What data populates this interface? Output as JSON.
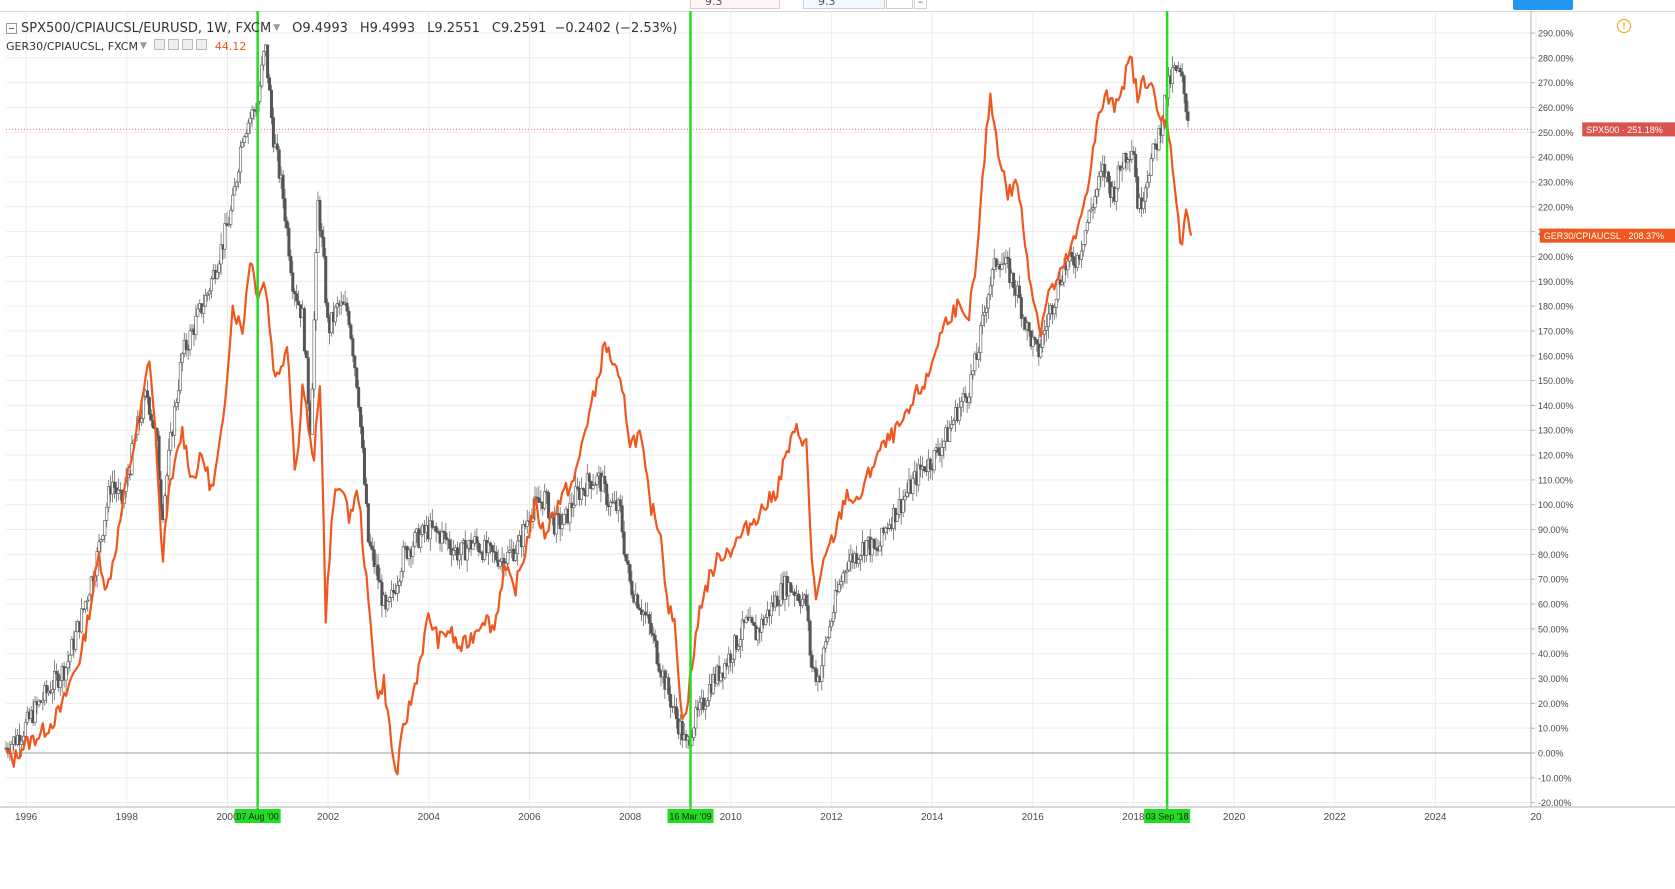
{
  "topbar": {
    "field_a": "9.3",
    "field_b": "9.3",
    "minimize": "–"
  },
  "legend": {
    "main_symbol": "SPX500/CPIAUCSL/EURUSD, 1W, FXCM",
    "open": "O9.4993",
    "high": "H9.4993",
    "low": "L9.2551",
    "close": "C9.2591",
    "change": "−0.2402 (−2.53%)",
    "compare_symbol": "GER30/CPIAUCSL, FXCM",
    "compare_value": "44.12"
  },
  "chart_data": {
    "type": "line",
    "y_axis": {
      "ticks": [
        "290.00%",
        "280.00%",
        "270.00%",
        "260.00%",
        "250.00%",
        "240.00%",
        "230.00%",
        "220.00%",
        "210.00%",
        "200.00%",
        "190.00%",
        "180.00%",
        "170.00%",
        "160.00%",
        "150.00%",
        "140.00%",
        "130.00%",
        "120.00%",
        "110.00%",
        "100.00%",
        "90.00%",
        "80.00%",
        "70.00%",
        "60.00%",
        "50.00%",
        "40.00%",
        "30.00%",
        "20.00%",
        "10.00%",
        "0.00%",
        "-10.00%",
        "-20.00%"
      ],
      "range": [
        -20,
        292
      ],
      "unit": "%"
    },
    "x_axis": {
      "ticks": [
        "1996",
        "1998",
        "2000",
        "2002",
        "2004",
        "2006",
        "2008",
        "2010",
        "2012",
        "2014",
        "2016",
        "2018",
        "2020",
        "2022",
        "2024",
        "20"
      ],
      "range": [
        1995.6,
        2025.9
      ]
    },
    "series": [
      {
        "name": "SPX500",
        "style": "candles",
        "color": "#555555",
        "last_label": "SPX500",
        "last_value_text": "251.18%",
        "last_value": 251.18,
        "points": [
          [
            1995.6,
            2
          ],
          [
            1995.9,
            8
          ],
          [
            1996.2,
            18
          ],
          [
            1996.5,
            27
          ],
          [
            1996.8,
            35
          ],
          [
            1997.1,
            55
          ],
          [
            1997.4,
            78
          ],
          [
            1997.7,
            110
          ],
          [
            1997.9,
            100
          ],
          [
            1998.2,
            130
          ],
          [
            1998.4,
            145
          ],
          [
            1998.6,
            125
          ],
          [
            1998.7,
            95
          ],
          [
            1998.9,
            130
          ],
          [
            1999.1,
            160
          ],
          [
            1999.3,
            170
          ],
          [
            1999.6,
            185
          ],
          [
            1999.9,
            205
          ],
          [
            2000.1,
            220
          ],
          [
            2000.3,
            250
          ],
          [
            2000.6,
            262
          ],
          [
            2000.75,
            285
          ],
          [
            2000.9,
            250
          ],
          [
            2001.1,
            225
          ],
          [
            2001.3,
            190
          ],
          [
            2001.5,
            175
          ],
          [
            2001.65,
            130
          ],
          [
            2001.8,
            222
          ],
          [
            2001.9,
            200
          ],
          [
            2002.0,
            170
          ],
          [
            2002.2,
            180
          ],
          [
            2002.4,
            178
          ],
          [
            2002.6,
            145
          ],
          [
            2002.8,
            85
          ],
          [
            2003.0,
            70
          ],
          [
            2003.15,
            55
          ],
          [
            2003.3,
            65
          ],
          [
            2003.5,
            80
          ],
          [
            2003.7,
            85
          ],
          [
            2004.0,
            90
          ],
          [
            2004.3,
            87
          ],
          [
            2004.6,
            80
          ],
          [
            2004.9,
            85
          ],
          [
            2005.2,
            80
          ],
          [
            2005.5,
            78
          ],
          [
            2005.8,
            84
          ],
          [
            2006.0,
            97
          ],
          [
            2006.3,
            103
          ],
          [
            2006.5,
            92
          ],
          [
            2006.7,
            93
          ],
          [
            2006.9,
            103
          ],
          [
            2007.2,
            110
          ],
          [
            2007.4,
            110
          ],
          [
            2007.6,
            100
          ],
          [
            2007.8,
            98
          ],
          [
            2007.9,
            80
          ],
          [
            2008.0,
            68
          ],
          [
            2008.2,
            60
          ],
          [
            2008.4,
            50
          ],
          [
            2008.6,
            35
          ],
          [
            2008.75,
            25
          ],
          [
            2008.9,
            15
          ],
          [
            2009.0,
            10
          ],
          [
            2009.12,
            2
          ],
          [
            2009.25,
            12
          ],
          [
            2009.4,
            17
          ],
          [
            2009.6,
            28
          ],
          [
            2009.8,
            33
          ],
          [
            2010.0,
            40
          ],
          [
            2010.3,
            52
          ],
          [
            2010.5,
            48
          ],
          [
            2010.7,
            55
          ],
          [
            2010.9,
            62
          ],
          [
            2011.1,
            68
          ],
          [
            2011.3,
            65
          ],
          [
            2011.5,
            60
          ],
          [
            2011.6,
            35
          ],
          [
            2011.75,
            30
          ],
          [
            2011.9,
            45
          ],
          [
            2012.1,
            63
          ],
          [
            2012.3,
            77
          ],
          [
            2012.5,
            80
          ],
          [
            2012.7,
            85
          ],
          [
            2012.9,
            80
          ],
          [
            2013.1,
            92
          ],
          [
            2013.3,
            98
          ],
          [
            2013.6,
            108
          ],
          [
            2013.8,
            115
          ],
          [
            2014.0,
            118
          ],
          [
            2014.3,
            128
          ],
          [
            2014.5,
            138
          ],
          [
            2014.7,
            145
          ],
          [
            2014.9,
            160
          ],
          [
            2015.1,
            185
          ],
          [
            2015.3,
            200
          ],
          [
            2015.5,
            195
          ],
          [
            2015.7,
            185
          ],
          [
            2015.9,
            170
          ],
          [
            2016.1,
            160
          ],
          [
            2016.3,
            175
          ],
          [
            2016.6,
            195
          ],
          [
            2016.9,
            200
          ],
          [
            2017.1,
            215
          ],
          [
            2017.4,
            235
          ],
          [
            2017.6,
            225
          ],
          [
            2017.8,
            240
          ],
          [
            2018.0,
            245
          ],
          [
            2018.1,
            218
          ],
          [
            2018.3,
            235
          ],
          [
            2018.5,
            248
          ],
          [
            2018.65,
            265
          ],
          [
            2018.8,
            275
          ],
          [
            2018.95,
            272
          ],
          [
            2019.1,
            255
          ]
        ]
      },
      {
        "name": "GER30/CPIAUCSL",
        "style": "line",
        "color": "#f0571f",
        "last_label": "GER30/CPIAUCSL",
        "last_value_text": "208.37%",
        "last_value": 208.37,
        "points": [
          [
            1995.6,
            0
          ],
          [
            1995.75,
            -3
          ],
          [
            1995.9,
            2
          ],
          [
            1996.1,
            5
          ],
          [
            1996.3,
            8
          ],
          [
            1996.5,
            12
          ],
          [
            1996.7,
            18
          ],
          [
            1996.9,
            30
          ],
          [
            1997.1,
            40
          ],
          [
            1997.3,
            62
          ],
          [
            1997.45,
            80
          ],
          [
            1997.6,
            65
          ],
          [
            1997.8,
            85
          ],
          [
            1998.0,
            110
          ],
          [
            1998.15,
            125
          ],
          [
            1998.3,
            140
          ],
          [
            1998.45,
            160
          ],
          [
            1998.6,
            120
          ],
          [
            1998.7,
            75
          ],
          [
            1998.8,
            100
          ],
          [
            1998.95,
            115
          ],
          [
            1999.1,
            130
          ],
          [
            1999.3,
            110
          ],
          [
            1999.5,
            120
          ],
          [
            1999.7,
            105
          ],
          [
            1999.9,
            130
          ],
          [
            2000.1,
            180
          ],
          [
            2000.3,
            170
          ],
          [
            2000.45,
            200
          ],
          [
            2000.6,
            185
          ],
          [
            2000.75,
            190
          ],
          [
            2000.95,
            150
          ],
          [
            2001.2,
            165
          ],
          [
            2001.35,
            110
          ],
          [
            2001.5,
            150
          ],
          [
            2001.7,
            115
          ],
          [
            2001.85,
            150
          ],
          [
            2001.95,
            55
          ],
          [
            2002.1,
            100
          ],
          [
            2002.25,
            110
          ],
          [
            2002.4,
            95
          ],
          [
            2002.6,
            105
          ],
          [
            2002.8,
            60
          ],
          [
            2003.0,
            20
          ],
          [
            2003.1,
            30
          ],
          [
            2003.25,
            5
          ],
          [
            2003.35,
            -10
          ],
          [
            2003.5,
            10
          ],
          [
            2003.7,
            25
          ],
          [
            2004.0,
            55
          ],
          [
            2004.2,
            45
          ],
          [
            2004.4,
            50
          ],
          [
            2004.6,
            42
          ],
          [
            2004.8,
            45
          ],
          [
            2005.1,
            55
          ],
          [
            2005.3,
            50
          ],
          [
            2005.5,
            75
          ],
          [
            2005.7,
            65
          ],
          [
            2005.9,
            80
          ],
          [
            2006.1,
            100
          ],
          [
            2006.3,
            88
          ],
          [
            2006.5,
            98
          ],
          [
            2006.7,
            105
          ],
          [
            2006.9,
            110
          ],
          [
            2007.1,
            130
          ],
          [
            2007.3,
            145
          ],
          [
            2007.5,
            165
          ],
          [
            2007.7,
            155
          ],
          [
            2007.9,
            140
          ],
          [
            2008.0,
            125
          ],
          [
            2008.2,
            128
          ],
          [
            2008.4,
            100
          ],
          [
            2008.6,
            90
          ],
          [
            2008.75,
            60
          ],
          [
            2008.9,
            50
          ],
          [
            2009.05,
            10
          ],
          [
            2009.2,
            30
          ],
          [
            2009.4,
            60
          ],
          [
            2009.6,
            72
          ],
          [
            2009.8,
            80
          ],
          [
            2010.0,
            82
          ],
          [
            2010.3,
            90
          ],
          [
            2010.5,
            95
          ],
          [
            2010.7,
            100
          ],
          [
            2010.9,
            105
          ],
          [
            2011.1,
            120
          ],
          [
            2011.3,
            130
          ],
          [
            2011.5,
            125
          ],
          [
            2011.6,
            80
          ],
          [
            2011.7,
            62
          ],
          [
            2011.9,
            80
          ],
          [
            2012.1,
            90
          ],
          [
            2012.3,
            105
          ],
          [
            2012.5,
            100
          ],
          [
            2012.7,
            110
          ],
          [
            2012.9,
            120
          ],
          [
            2013.1,
            125
          ],
          [
            2013.3,
            130
          ],
          [
            2013.5,
            135
          ],
          [
            2013.7,
            145
          ],
          [
            2013.9,
            150
          ],
          [
            2014.1,
            165
          ],
          [
            2014.3,
            175
          ],
          [
            2014.5,
            180
          ],
          [
            2014.7,
            172
          ],
          [
            2014.9,
            200
          ],
          [
            2015.0,
            230
          ],
          [
            2015.15,
            265
          ],
          [
            2015.3,
            245
          ],
          [
            2015.5,
            225
          ],
          [
            2015.7,
            230
          ],
          [
            2015.85,
            205
          ],
          [
            2016.0,
            185
          ],
          [
            2016.15,
            170
          ],
          [
            2016.3,
            185
          ],
          [
            2016.5,
            190
          ],
          [
            2016.7,
            200
          ],
          [
            2016.9,
            210
          ],
          [
            2017.1,
            230
          ],
          [
            2017.3,
            255
          ],
          [
            2017.45,
            265
          ],
          [
            2017.6,
            260
          ],
          [
            2017.8,
            270
          ],
          [
            2017.95,
            280
          ],
          [
            2018.1,
            262
          ],
          [
            2018.2,
            272
          ],
          [
            2018.35,
            270
          ],
          [
            2018.5,
            255
          ],
          [
            2018.65,
            255
          ],
          [
            2018.75,
            245
          ],
          [
            2018.85,
            220
          ],
          [
            2018.95,
            205
          ],
          [
            2019.05,
            220
          ],
          [
            2019.15,
            208.37
          ]
        ]
      }
    ],
    "price_line": {
      "value": 251.18,
      "style": "dotted"
    },
    "zero_line": 0,
    "markers": [
      {
        "x": 2000.6,
        "label": "07 Aug '00"
      },
      {
        "x": 2009.2,
        "label": "16 Mar '09"
      },
      {
        "x": 2018.67,
        "label": "03 Sep '18"
      }
    ],
    "marker_color": "#22dd22",
    "grid": true
  }
}
